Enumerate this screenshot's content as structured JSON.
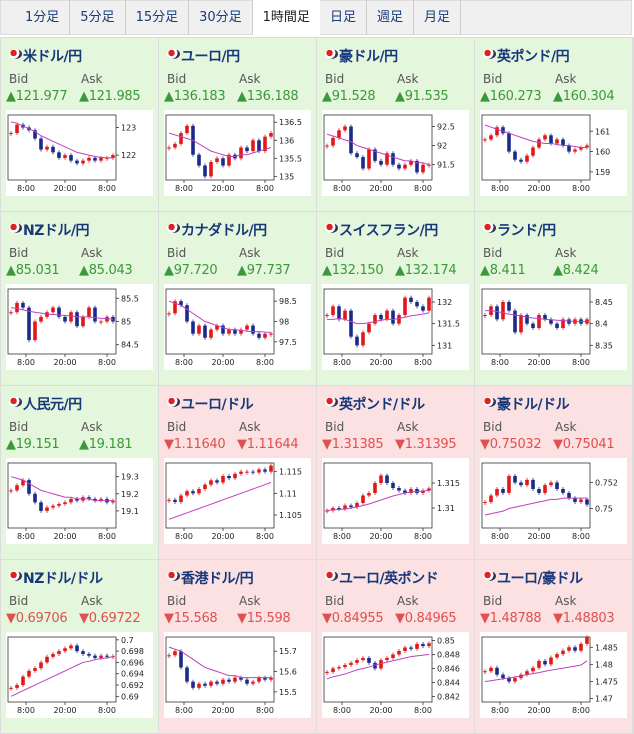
{
  "tabs": [
    {
      "label": "1分足",
      "active": false
    },
    {
      "label": "5分足",
      "active": false
    },
    {
      "label": "15分足",
      "active": false
    },
    {
      "label": "30分足",
      "active": false
    },
    {
      "label": "1時間足",
      "active": true
    },
    {
      "label": "日足",
      "active": false
    },
    {
      "label": "週足",
      "active": false
    },
    {
      "label": "月足",
      "active": false
    }
  ],
  "bid_label": "Bid",
  "ask_label": "Ask",
  "xlim": [
    0,
    18
  ],
  "xticks": [
    {
      "value": 3,
      "label": "8:00"
    },
    {
      "value": 9.5,
      "label": "20:00"
    },
    {
      "value": 16.5,
      "label": "8:00"
    }
  ],
  "pairs": [
    {
      "name": "米ドル/円",
      "bid": "▲121.977",
      "ask": "▲121.985",
      "bg_color": "#e4f6dc",
      "value_color": "#3a9a3a",
      "chart": {
        "ylim": [
          121.1,
          123.45
        ],
        "yticks": [
          123,
          122
        ],
        "values": [
          122.8,
          123.1,
          123.0,
          122.9,
          122.6,
          122.2,
          122.3,
          122.1,
          121.9,
          122.0,
          121.8,
          121.7,
          121.8,
          121.9,
          121.8,
          121.9,
          121.9,
          122.0
        ],
        "ma": [
          123.2,
          123.15,
          123.05,
          122.95,
          122.85,
          122.7,
          122.6,
          122.5,
          122.4,
          122.3,
          122.2,
          122.1,
          122.05,
          122.0,
          121.95,
          121.92,
          121.9,
          121.9
        ]
      }
    },
    {
      "name": "ユーロ/円",
      "bid": "▲136.183",
      "ask": "▲136.188",
      "bg_color": "#e4f6dc",
      "value_color": "#3a9a3a",
      "chart": {
        "ylim": [
          134.9,
          136.7
        ],
        "yticks": [
          136.5,
          136,
          135.5,
          135
        ],
        "values": [
          135.8,
          135.9,
          136.2,
          136.4,
          135.6,
          135.3,
          135.0,
          135.4,
          135.5,
          135.3,
          135.6,
          135.5,
          135.8,
          135.7,
          136.0,
          135.7,
          136.1,
          136.2
        ],
        "ma": [
          136.2,
          136.15,
          136.1,
          136.05,
          136.0,
          135.9,
          135.8,
          135.7,
          135.65,
          135.6,
          135.55,
          135.55,
          135.6,
          135.6,
          135.65,
          135.7,
          135.75,
          135.8
        ]
      }
    },
    {
      "name": "豪ドル/円",
      "bid": "▲91.528",
      "ask": "▲91.535",
      "bg_color": "#e4f6dc",
      "value_color": "#3a9a3a",
      "chart": {
        "ylim": [
          91.1,
          92.8
        ],
        "yticks": [
          92.5,
          92,
          91.5
        ],
        "values": [
          92.0,
          92.2,
          92.4,
          92.5,
          91.8,
          91.7,
          91.4,
          91.9,
          91.6,
          91.5,
          91.8,
          91.5,
          91.4,
          91.5,
          91.6,
          91.3,
          91.5,
          91.5
        ],
        "ma": [
          92.3,
          92.25,
          92.2,
          92.15,
          92.1,
          92.0,
          91.95,
          91.9,
          91.85,
          91.8,
          91.75,
          91.7,
          91.65,
          91.6,
          91.6,
          91.55,
          91.55,
          91.5
        ]
      }
    },
    {
      "name": "英ポンド/円",
      "bid": "▲160.273",
      "ask": "▲160.304",
      "bg_color": "#e4f6dc",
      "value_color": "#3a9a3a",
      "chart": {
        "ylim": [
          158.6,
          161.8
        ],
        "yticks": [
          161,
          160,
          159
        ],
        "values": [
          160.6,
          160.8,
          161.2,
          160.9,
          160.0,
          159.6,
          159.5,
          159.8,
          160.2,
          160.6,
          160.8,
          160.4,
          160.6,
          160.3,
          160.0,
          160.1,
          160.2,
          160.3
        ],
        "ma": [
          161.3,
          161.2,
          161.1,
          161.0,
          160.9,
          160.8,
          160.7,
          160.6,
          160.5,
          160.45,
          160.4,
          160.4,
          160.35,
          160.3,
          160.3,
          160.25,
          160.2,
          160.2
        ]
      }
    },
    {
      "name": "NZドル/円",
      "bid": "▲85.031",
      "ask": "▲85.043",
      "bg_color": "#e4f6dc",
      "value_color": "#3a9a3a",
      "chart": {
        "ylim": [
          84.3,
          85.7
        ],
        "yticks": [
          85.5,
          85,
          84.5
        ],
        "values": [
          85.2,
          85.4,
          85.3,
          84.6,
          85.0,
          85.1,
          85.2,
          85.3,
          85.1,
          85.0,
          85.2,
          84.9,
          85.1,
          85.3,
          85.0,
          85.0,
          85.1,
          85.0
        ],
        "ma": [
          85.3,
          85.28,
          85.25,
          85.22,
          85.2,
          85.18,
          85.16,
          85.15,
          85.14,
          85.13,
          85.12,
          85.1,
          85.1,
          85.1,
          85.08,
          85.07,
          85.06,
          85.05
        ]
      }
    },
    {
      "name": "カナダドル/円",
      "bid": "▲97.720",
      "ask": "▲97.737",
      "bg_color": "#e4f6dc",
      "value_color": "#3a9a3a",
      "chart": {
        "ylim": [
          97.2,
          98.8
        ],
        "yticks": [
          98.5,
          98,
          97.5
        ],
        "values": [
          98.2,
          98.5,
          98.4,
          98.0,
          97.7,
          97.9,
          97.6,
          97.8,
          97.9,
          97.7,
          97.8,
          97.7,
          97.8,
          97.9,
          97.7,
          97.6,
          97.7,
          97.7
        ],
        "ma": [
          98.5,
          98.45,
          98.4,
          98.3,
          98.2,
          98.1,
          98.0,
          97.95,
          97.9,
          97.85,
          97.8,
          97.8,
          97.78,
          97.76,
          97.75,
          97.75,
          97.74,
          97.73
        ]
      }
    },
    {
      "name": "スイスフラン/円",
      "bid": "▲132.150",
      "ask": "▲132.174",
      "bg_color": "#e4f6dc",
      "value_color": "#3a9a3a",
      "chart": {
        "ylim": [
          130.8,
          132.3
        ],
        "yticks": [
          132,
          131.5,
          131
        ],
        "values": [
          131.7,
          131.9,
          131.6,
          131.8,
          131.2,
          131.0,
          131.3,
          131.5,
          131.7,
          131.6,
          131.8,
          131.5,
          131.7,
          132.1,
          132.0,
          131.9,
          131.8,
          132.1
        ],
        "ma": [
          131.6,
          131.6,
          131.62,
          131.6,
          131.55,
          131.5,
          131.5,
          131.52,
          131.55,
          131.58,
          131.6,
          131.6,
          131.62,
          131.65,
          131.68,
          131.7,
          131.72,
          131.75
        ]
      }
    },
    {
      "name": "ランド/円",
      "bid": "▲8.411",
      "ask": "▲8.424",
      "bg_color": "#e4f6dc",
      "value_color": "#3a9a3a",
      "chart": {
        "ylim": [
          8.33,
          8.48
        ],
        "yticks": [
          8.45,
          8.4,
          8.35
        ],
        "values": [
          8.42,
          8.44,
          8.41,
          8.45,
          8.43,
          8.38,
          8.42,
          8.4,
          8.39,
          8.42,
          8.41,
          8.4,
          8.39,
          8.41,
          8.4,
          8.41,
          8.4,
          8.41
        ],
        "ma": [
          8.43,
          8.43,
          8.428,
          8.425,
          8.422,
          8.42,
          8.418,
          8.415,
          8.413,
          8.412,
          8.41,
          8.409,
          8.408,
          8.407,
          8.406,
          8.405,
          8.405,
          8.405
        ]
      }
    },
    {
      "name": "人民元/円",
      "bid": "▲19.151",
      "ask": "▲19.181",
      "bg_color": "#e4f6dc",
      "value_color": "#3a9a3a",
      "chart": {
        "ylim": [
          19.0,
          19.38
        ],
        "yticks": [
          19.3,
          19.2,
          19.1
        ],
        "values": [
          19.22,
          19.25,
          19.28,
          19.2,
          19.15,
          19.1,
          19.12,
          19.13,
          19.14,
          19.15,
          19.17,
          19.16,
          19.18,
          19.17,
          19.16,
          19.17,
          19.15,
          19.16
        ],
        "ma": [
          19.3,
          19.29,
          19.28,
          19.26,
          19.24,
          19.22,
          19.21,
          19.2,
          19.19,
          19.18,
          19.18,
          19.17,
          19.17,
          19.17,
          19.16,
          19.16,
          19.16,
          19.16
        ]
      }
    },
    {
      "name": "ユーロ/ドル",
      "bid": "▼1.11640",
      "ask": "▼1.11644",
      "bg_color": "#fbe1e1",
      "value_color": "#e05050",
      "chart": {
        "ylim": [
          1.102,
          1.117
        ],
        "yticks": [
          1.115,
          1.11,
          1.105
        ],
        "values": [
          1.1085,
          1.108,
          1.1095,
          1.1105,
          1.11,
          1.111,
          1.112,
          1.113,
          1.1125,
          1.114,
          1.1135,
          1.1145,
          1.115,
          1.115,
          1.1148,
          1.1155,
          1.115,
          1.1164
        ],
        "ma": [
          1.104,
          1.1045,
          1.105,
          1.1055,
          1.106,
          1.1065,
          1.107,
          1.1075,
          1.108,
          1.1085,
          1.109,
          1.1095,
          1.11,
          1.1105,
          1.111,
          1.1115,
          1.112,
          1.1125
        ]
      }
    },
    {
      "name": "英ポンド/ドル",
      "bid": "▼1.31385",
      "ask": "▼1.31395",
      "bg_color": "#fbe1e1",
      "value_color": "#e05050",
      "chart": {
        "ylim": [
          1.306,
          1.319
        ],
        "yticks": [
          1.315,
          1.31
        ],
        "values": [
          1.3095,
          1.31,
          1.3098,
          1.3105,
          1.3102,
          1.311,
          1.3125,
          1.313,
          1.315,
          1.3165,
          1.315,
          1.314,
          1.3135,
          1.313,
          1.3138,
          1.313,
          1.3135,
          1.3139
        ],
        "ma": [
          1.3095,
          1.3096,
          1.3097,
          1.3098,
          1.31,
          1.3102,
          1.3105,
          1.3108,
          1.3112,
          1.3116,
          1.312,
          1.3124,
          1.3127,
          1.313,
          1.3132,
          1.3133,
          1.3134,
          1.3135
        ]
      }
    },
    {
      "name": "豪ドル/ドル",
      "bid": "▼0.75032",
      "ask": "▼0.75041",
      "bg_color": "#fbe1e1",
      "value_color": "#e05050",
      "chart": {
        "ylim": [
          0.7485,
          0.7535
        ],
        "yticks": [
          0.752,
          0.75
        ],
        "values": [
          0.7505,
          0.751,
          0.7515,
          0.7512,
          0.7525,
          0.752,
          0.7518,
          0.7522,
          0.7515,
          0.7512,
          0.7518,
          0.752,
          0.7515,
          0.7512,
          0.7508,
          0.7505,
          0.7507,
          0.7503
        ],
        "ma": [
          0.7495,
          0.7496,
          0.7497,
          0.7498,
          0.75,
          0.7501,
          0.7502,
          0.7503,
          0.7504,
          0.7505,
          0.7506,
          0.7507,
          0.7507,
          0.7508,
          0.7508,
          0.7508,
          0.7508,
          0.7508
        ]
      }
    },
    {
      "name": "NZドル/ドル",
      "bid": "▼0.69706",
      "ask": "▼0.69722",
      "bg_color": "#e4f6dc",
      "value_color": "#e05050",
      "chart": {
        "ylim": [
          0.689,
          0.7005
        ],
        "yticks": [
          0.7,
          0.698,
          0.696,
          0.694,
          0.692,
          0.69
        ],
        "values": [
          0.6915,
          0.692,
          0.6935,
          0.6945,
          0.695,
          0.696,
          0.697,
          0.6975,
          0.698,
          0.6985,
          0.699,
          0.698,
          0.6975,
          0.6972,
          0.6968,
          0.6972,
          0.697,
          0.6971
        ],
        "ma": [
          0.69,
          0.6905,
          0.691,
          0.6915,
          0.692,
          0.6925,
          0.693,
          0.6935,
          0.694,
          0.6945,
          0.695,
          0.6955,
          0.696,
          0.6962,
          0.6965,
          0.6967,
          0.6968,
          0.697
        ]
      }
    },
    {
      "name": "香港ドル/円",
      "bid": "▼15.568",
      "ask": "▼15.598",
      "bg_color": "#fbe1e1",
      "value_color": "#e05050",
      "chart": {
        "ylim": [
          15.45,
          15.77
        ],
        "yticks": [
          15.7,
          15.6,
          15.5
        ],
        "values": [
          15.68,
          15.7,
          15.62,
          15.55,
          15.52,
          15.54,
          15.53,
          15.55,
          15.54,
          15.56,
          15.55,
          15.57,
          15.56,
          15.54,
          15.55,
          15.57,
          15.56,
          15.57
        ],
        "ma": [
          15.72,
          15.71,
          15.7,
          15.68,
          15.66,
          15.64,
          15.62,
          15.61,
          15.6,
          15.59,
          15.58,
          15.58,
          15.57,
          15.57,
          15.57,
          15.57,
          15.57,
          15.57
        ]
      }
    },
    {
      "name": "ユーロ/英ポンド",
      "bid": "▼0.84955",
      "ask": "▼0.84965",
      "bg_color": "#fbe1e1",
      "value_color": "#e05050",
      "chart": {
        "ylim": [
          0.8412,
          0.8505
        ],
        "yticks": [
          0.85,
          0.848,
          0.846,
          0.844,
          0.842
        ],
        "values": [
          0.8455,
          0.846,
          0.8462,
          0.8465,
          0.8468,
          0.8472,
          0.8475,
          0.8468,
          0.846,
          0.8472,
          0.8475,
          0.848,
          0.8485,
          0.849,
          0.8488,
          0.8495,
          0.8492,
          0.8496
        ],
        "ma": [
          0.8445,
          0.8448,
          0.845,
          0.8452,
          0.8455,
          0.8458,
          0.846,
          0.8462,
          0.8465,
          0.8467,
          0.8469,
          0.8471,
          0.8473,
          0.8475,
          0.8477,
          0.8478,
          0.8479,
          0.848
        ]
      }
    },
    {
      "name": "ユーロ/豪ドル",
      "bid": "▼1.48788",
      "ask": "▼1.48803",
      "bg_color": "#fbe1e1",
      "value_color": "#e05050",
      "chart": {
        "ylim": [
          1.469,
          1.488
        ],
        "yticks": [
          1.485,
          1.48,
          1.475,
          1.47
        ],
        "values": [
          1.478,
          1.479,
          1.477,
          1.476,
          1.475,
          1.476,
          1.477,
          1.478,
          1.479,
          1.481,
          1.48,
          1.482,
          1.483,
          1.484,
          1.485,
          1.484,
          1.486,
          1.4879
        ],
        "ma": [
          1.475,
          1.4752,
          1.4755,
          1.4758,
          1.476,
          1.4763,
          1.4766,
          1.477,
          1.4773,
          1.4776,
          1.478,
          1.4783,
          1.4786,
          1.4789,
          1.4792,
          1.4795,
          1.4798,
          1.481
        ]
      }
    }
  ]
}
